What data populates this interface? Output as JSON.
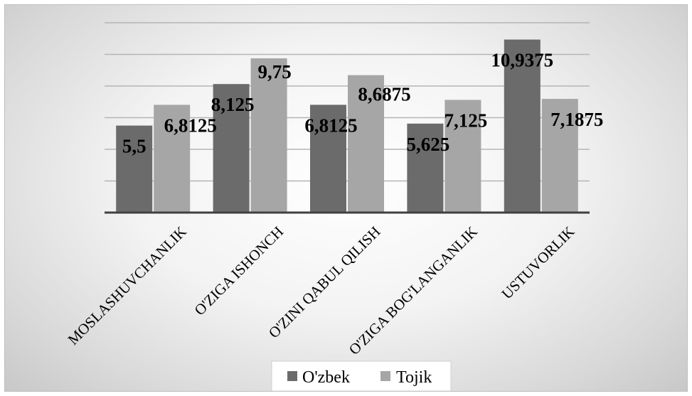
{
  "chart_data": {
    "type": "bar",
    "title": "",
    "xlabel": "",
    "ylabel": "",
    "ylim": [
      0,
      12
    ],
    "grid": true,
    "legend_position": "bottom",
    "categories": [
      "MOSLASHUVCHANLIK",
      "O'ZIGA ISHONCH",
      "O'ZINI QABUL QILISH",
      "O'ZIGA BOG'LANGANLIK",
      "USTUVORLIK"
    ],
    "series": [
      {
        "name": "O'zbek",
        "values": [
          5.5,
          8.125,
          6.8125,
          5.625,
          10.9375
        ],
        "labels": [
          "5,5",
          "8,125",
          "6,8125",
          "5,625",
          "10,9375"
        ],
        "color": "#6b6b6b"
      },
      {
        "name": "Tojik",
        "values": [
          6.8125,
          9.75,
          8.6875,
          7.125,
          7.1875
        ],
        "labels": [
          "6,8125",
          "9,75",
          "8,6875",
          "7,125",
          "7,1875"
        ],
        "color": "#a6a6a6"
      }
    ]
  }
}
